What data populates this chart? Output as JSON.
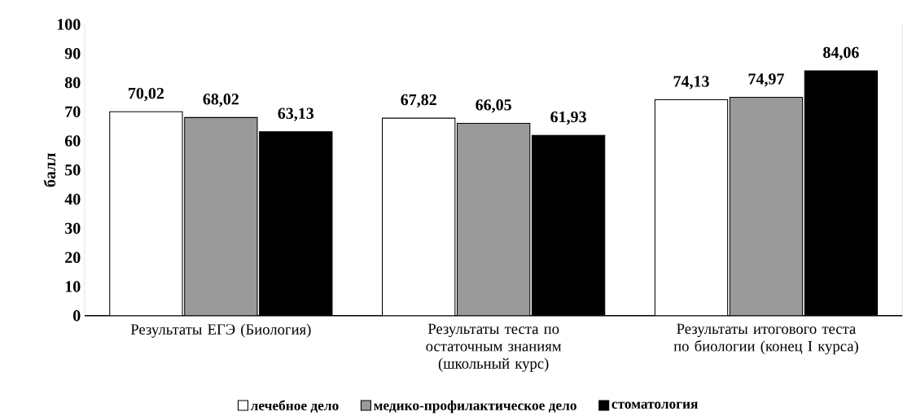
{
  "chart_data": {
    "type": "bar",
    "ylabel": "балл",
    "categories": [
      "Результаты ЕГЭ (Биология)",
      "Результаты теста по остаточным знаниям (школьный курс)",
      "Результаты итогового теста по биологии (конец I курса)"
    ],
    "series": [
      {
        "name": "лечебное дело",
        "color": "#ffffff",
        "values": [
          70.02,
          67.82,
          74.13
        ],
        "value_labels": [
          "70,02",
          "67,82",
          "74,13"
        ]
      },
      {
        "name": "медико-профилактическое  дело",
        "color": "#9a9a9a",
        "values": [
          68.02,
          66.05,
          74.97
        ],
        "value_labels": [
          "68,02",
          "66,05",
          "74,97"
        ]
      },
      {
        "name": "стоматология",
        "color": "#000000",
        "values": [
          63.13,
          61.93,
          84.06
        ],
        "value_labels": [
          "63,13",
          "61,93",
          "84,06"
        ]
      }
    ],
    "ylim": [
      0,
      100
    ],
    "yticks": [
      0,
      10,
      20,
      30,
      40,
      50,
      60,
      70,
      80,
      90,
      100
    ],
    "grid": false,
    "legend": "bottom"
  }
}
